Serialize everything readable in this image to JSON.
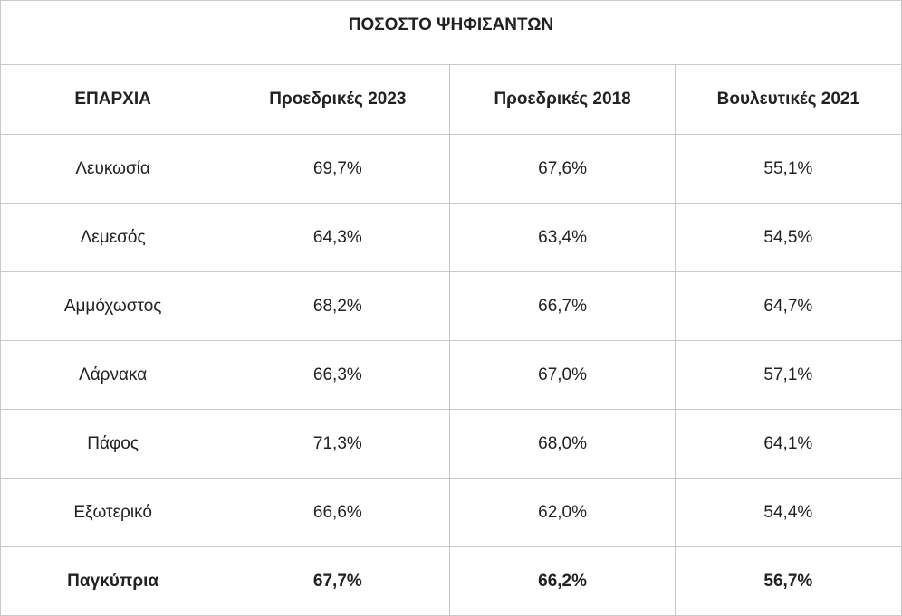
{
  "table": {
    "title": "ΠΟΣΟΣΤΟ ΨΗΦΙΣΑΝΤΩΝ",
    "headers": [
      "ΕΠΑΡΧΙΑ",
      "Προεδρικές 2023",
      "Προεδρικές 2018",
      "Βουλευτικές 2021"
    ],
    "rows": [
      [
        "Λευκωσία",
        "69,7%",
        "67,6%",
        "55,1%"
      ],
      [
        "Λεμεσός",
        "64,3%",
        "63,4%",
        "54,5%"
      ],
      [
        "Αμμόχωστος",
        "68,2%",
        "66,7%",
        "64,7%"
      ],
      [
        "Λάρνακα",
        "66,3%",
        "67,0%",
        "57,1%"
      ],
      [
        "Πάφος",
        "71,3%",
        "68,0%",
        "64,1%"
      ],
      [
        "Εξωτερικό",
        "66,6%",
        "62,0%",
        "54,4%"
      ]
    ],
    "total": [
      "Παγκύπρια",
      "67,7%",
      "66,2%",
      "56,7%"
    ]
  }
}
